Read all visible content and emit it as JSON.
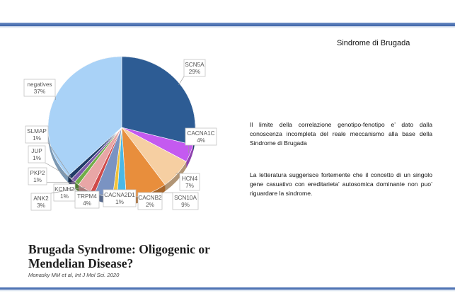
{
  "slide": {
    "title": "Sindrome di Brugada",
    "paragraph1": "Il limite della correlazione genotipo-fenotipo e’ dato dalla conoscenza incompleta del reale meccanismo alla base della Sindrome di Brugada",
    "paragraph2": "La letteratura suggerisce fortemente che il concetto di un singolo gene casuativo con ereditarieta’ autosomica dominante non puo’ riguardare la sindrome."
  },
  "paper": {
    "title_line1": "Brugada Syndrome: Oligogenic or",
    "title_line2": "Mendelian Disease?",
    "citation": "Monasky MM et al, Int J Mol Sci. 2020"
  },
  "chart_data": {
    "type": "pie",
    "title": "",
    "start_angle_deg": 0,
    "direction": "clockwise",
    "legend": "none",
    "slices": [
      {
        "name": "SCN5A",
        "value": 29,
        "label": "29%",
        "color": "#2d5c94"
      },
      {
        "name": "CACNA1C",
        "value": 4,
        "label": "4%",
        "color": "#c45af0"
      },
      {
        "name": "HCN4",
        "value": 7,
        "label": "7%",
        "color": "#f6cfa2"
      },
      {
        "name": "SCN10A",
        "value": 9,
        "label": "9%",
        "color": "#e88e3c"
      },
      {
        "name": "CACNB2",
        "value": 2,
        "label": "2%",
        "color": "#4bb8e6"
      },
      {
        "name": "CACNA2D1",
        "value": 1,
        "label": "1%",
        "color": "#f2c33a"
      },
      {
        "name": "TRPM4",
        "value": 4,
        "label": "4%",
        "color": "#7a93c2"
      },
      {
        "name": "KCNH2",
        "value": 1,
        "label": "1%",
        "color": "#cf4a4a"
      },
      {
        "name": "ANK2",
        "value": 3,
        "label": "3%",
        "color": "#e8a6a6"
      },
      {
        "name": "PKP2",
        "value": 1,
        "label": "1%",
        "color": "#70ad47"
      },
      {
        "name": "JUP",
        "value": 1,
        "label": "1%",
        "color": "#7a5aa8"
      },
      {
        "name": "SLMAP",
        "value": 1,
        "label": "1%",
        "color": "#1f3b66"
      },
      {
        "name": "negatives",
        "value": 37,
        "label": "37%",
        "color": "#a9d2f7"
      }
    ]
  }
}
